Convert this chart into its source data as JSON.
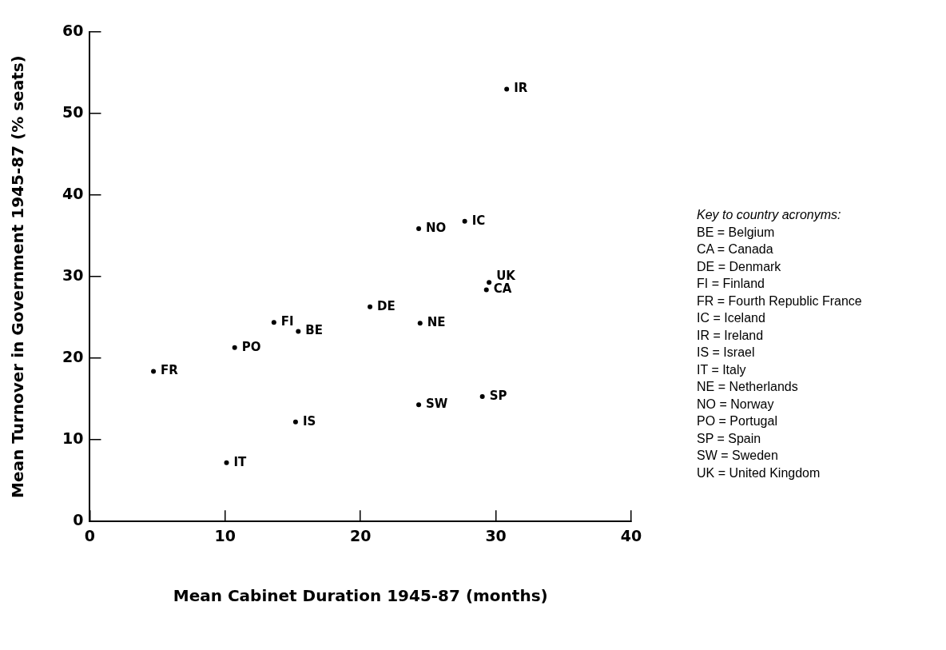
{
  "chart_data": {
    "type": "scatter",
    "xlabel": "Mean Cabinet Duration 1945-87 (months)",
    "ylabel": "Mean Turnover in Government 1945-87 (% seats)",
    "x": [
      15.4,
      29.3,
      20.7,
      13.6,
      4.7,
      27.7,
      30.8,
      15.2,
      10.1,
      24.4,
      24.3,
      10.7,
      29.0,
      24.3,
      29.5
    ],
    "series": [
      {
        "color": "#000000",
        "values": [
          23.3,
          28.4,
          26.3,
          24.4,
          18.4,
          36.8,
          53.0,
          12.2,
          7.2,
          24.3,
          35.9,
          21.3,
          15.3,
          14.3,
          29.3
        ]
      }
    ],
    "marker": "circle",
    "grid": false,
    "legend": false,
    "xlim": [
      0,
      40
    ],
    "xticks": [
      0,
      10,
      20,
      30,
      40
    ],
    "ylim": [
      0,
      60
    ],
    "yticks": [
      0,
      10,
      20,
      30,
      40,
      50,
      60
    ],
    "annotations": [
      {
        "text": "BE",
        "x": 15.4,
        "y": 23.3
      },
      {
        "text": "CA",
        "x": 29.3,
        "y": 28.4
      },
      {
        "text": "DE",
        "x": 20.7,
        "y": 26.3
      },
      {
        "text": "FI",
        "x": 13.6,
        "y": 24.4
      },
      {
        "text": "FR",
        "x": 4.7,
        "y": 18.4
      },
      {
        "text": "IC",
        "x": 27.7,
        "y": 36.8
      },
      {
        "text": "IR",
        "x": 30.8,
        "y": 53.0
      },
      {
        "text": "IS",
        "x": 15.2,
        "y": 12.2
      },
      {
        "text": "IT",
        "x": 10.1,
        "y": 7.2
      },
      {
        "text": "NE",
        "x": 24.4,
        "y": 24.3
      },
      {
        "text": "NO",
        "x": 24.3,
        "y": 35.9
      },
      {
        "text": "PO",
        "x": 10.7,
        "y": 21.3
      },
      {
        "text": "SP",
        "x": 29.0,
        "y": 15.3
      },
      {
        "text": "SW",
        "x": 24.3,
        "y": 14.3
      },
      {
        "text": "UK",
        "x": 29.5,
        "y": 29.3
      },
      "Key to country acronyms:",
      "BE = Belgium",
      "CA = Canada",
      "DE = Denmark",
      "FI = Finland",
      "FR = Fourth Republic France",
      "IC = Iceland",
      "IR = Ireland",
      "IS = Israel",
      "IT = Italy",
      "NE = Netherlands",
      "NO = Norway",
      "PO = Portugal",
      "SP = Spain",
      "SW = Sweden",
      "UK = United Kingdom"
    ]
  }
}
